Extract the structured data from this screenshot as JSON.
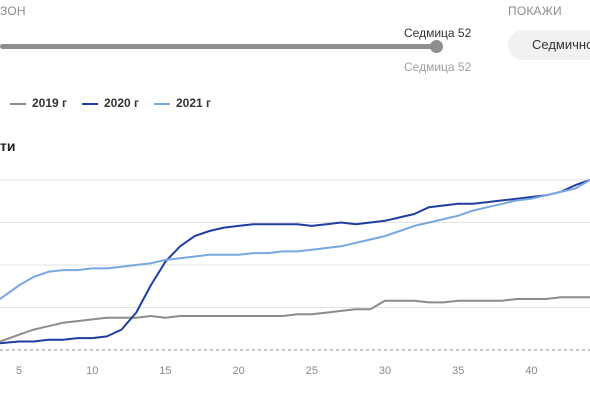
{
  "controls": {
    "range_label": "ЗОН",
    "show_label": "ПОКАЖИ",
    "slider_value_top": "Седмица 52",
    "slider_value_bottom": "Седмица 52",
    "show_button": "Седмично"
  },
  "chart_title": "ти",
  "legend": [
    {
      "label": "2019 г",
      "color": "#8c8c8c"
    },
    {
      "label": "2020 г",
      "color": "#1f3e9e"
    },
    {
      "label": "2021 г",
      "color": "#79a8e0"
    }
  ],
  "chart_data": {
    "type": "line",
    "title": "ти",
    "xlabel": "",
    "ylabel": "",
    "x_ticks": [
      "5",
      "10",
      "15",
      "20",
      "25",
      "30",
      "35",
      "40"
    ],
    "xlim": [
      3.7,
      44
    ],
    "ylim": [
      0,
      100
    ],
    "grid": true,
    "baseline_dashed": 0,
    "legend_position": "top-left",
    "series": [
      {
        "name": "2019 г",
        "color": "#8c8c8c",
        "x": [
          3.7,
          5,
          6,
          7,
          8,
          9,
          10,
          11,
          12,
          13,
          14,
          15,
          16,
          17,
          18,
          19,
          20,
          21,
          22,
          23,
          24,
          25,
          26,
          27,
          28,
          29,
          30,
          31,
          32,
          33,
          34,
          35,
          36,
          37,
          38,
          39,
          40,
          41,
          42,
          43,
          44
        ],
        "y": [
          5,
          9,
          12,
          14,
          16,
          17,
          18,
          19,
          19,
          19,
          20,
          19,
          20,
          20,
          20,
          20,
          20,
          20,
          20,
          20,
          21,
          21,
          22,
          23,
          24,
          24,
          29,
          29,
          29,
          28,
          28,
          29,
          29,
          29,
          29,
          30,
          30,
          30,
          31,
          31,
          31
        ]
      },
      {
        "name": "2020 г",
        "color": "#1f3e9e",
        "x": [
          3.7,
          5,
          6,
          7,
          8,
          9,
          10,
          11,
          12,
          13,
          14,
          15,
          16,
          17,
          18,
          19,
          20,
          21,
          22,
          23,
          24,
          25,
          26,
          27,
          28,
          29,
          30,
          31,
          32,
          33,
          34,
          35,
          36,
          37,
          38,
          39,
          40,
          41,
          42,
          43,
          44
        ],
        "y": [
          4,
          5,
          5,
          6,
          6,
          7,
          7,
          8,
          12,
          22,
          38,
          52,
          61,
          67,
          70,
          72,
          73,
          74,
          74,
          74,
          74,
          73,
          74,
          75,
          74,
          75,
          76,
          78,
          80,
          84,
          85,
          86,
          86,
          87,
          88,
          89,
          90,
          91,
          93,
          97,
          100
        ]
      },
      {
        "name": "2021 г",
        "color": "#79a8e0",
        "x": [
          3.7,
          5,
          6,
          7,
          8,
          9,
          10,
          11,
          12,
          13,
          14,
          15,
          16,
          17,
          18,
          19,
          20,
          21,
          22,
          23,
          24,
          25,
          26,
          27,
          28,
          29,
          30,
          31,
          32,
          33,
          34,
          35,
          36,
          37,
          38,
          39,
          40,
          41,
          42,
          43,
          44
        ],
        "y": [
          30,
          38,
          43,
          46,
          47,
          47,
          48,
          48,
          49,
          50,
          51,
          53,
          54,
          55,
          56,
          56,
          56,
          57,
          57,
          58,
          58,
          59,
          60,
          61,
          63,
          65,
          67,
          70,
          73,
          75,
          77,
          79,
          82,
          84,
          86,
          88,
          89,
          91,
          93,
          95,
          100
        ]
      }
    ]
  }
}
